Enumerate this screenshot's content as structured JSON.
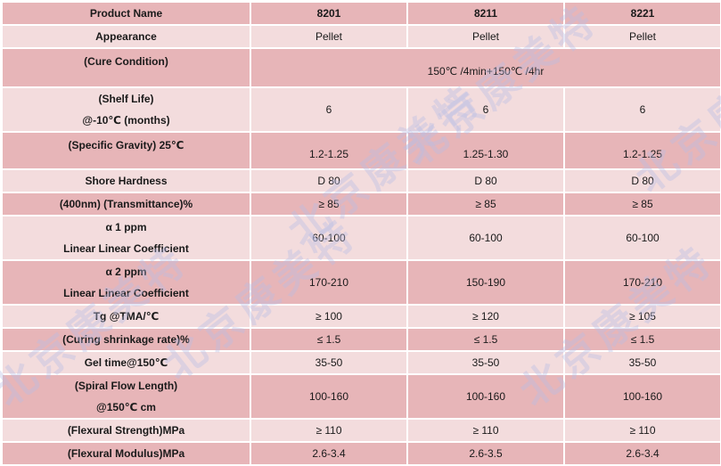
{
  "header": {
    "label": "Product Name",
    "columns": [
      "8201",
      "8211",
      "8221"
    ]
  },
  "rows": [
    {
      "label_lines": [
        "Appearance"
      ],
      "values": [
        "Pellet",
        "Pellet",
        "Pellet"
      ]
    },
    {
      "label_lines": [
        "(Cure Condition)"
      ],
      "merged_value": "150℃  /4min+150℃  /4hr"
    },
    {
      "label_lines": [
        "(Shelf Life)",
        "@-10℃  (months)"
      ],
      "values": [
        "6",
        "6",
        "6"
      ]
    },
    {
      "label_lines": [
        "(Specific Gravity) 25℃"
      ],
      "values": [
        "1.2-1.25",
        "1.25-1.30",
        "1.2-1.25"
      ]
    },
    {
      "label_lines": [
        "Shore Hardness"
      ],
      "values": [
        "D 80",
        "D 80",
        "D 80"
      ]
    },
    {
      "label_lines": [
        "(400nm) (Transmittance)%"
      ],
      "values": [
        "≥ 85",
        "≥ 85",
        "≥ 85"
      ]
    },
    {
      "label_lines": [
        "α 1    ppm",
        "Linear Linear Coefficient"
      ],
      "values": [
        "60-100",
        "60-100",
        "60-100"
      ]
    },
    {
      "label_lines": [
        "α 2    ppm",
        "Linear Linear Coefficient"
      ],
      "values": [
        "170-210",
        "150-190",
        "170-210"
      ]
    },
    {
      "label_lines": [
        "Tg @TMA/℃"
      ],
      "values": [
        "≥ 100",
        "≥ 120",
        "≥ 105"
      ]
    },
    {
      "label_lines": [
        "(Curing shrinkage rate)%"
      ],
      "values": [
        "≤ 1.5",
        "≤ 1.5",
        "≤ 1.5"
      ]
    },
    {
      "label_lines": [
        "Gel time@150℃"
      ],
      "values": [
        "35-50",
        "35-50",
        "35-50"
      ]
    },
    {
      "label_lines": [
        "(Spiral Flow Length)",
        "@150℃  cm"
      ],
      "values": [
        "100-160",
        "100-160",
        "100-160"
      ]
    },
    {
      "label_lines": [
        "(Flexural Strength)MPa"
      ],
      "values": [
        "≥ 110",
        "≥ 110",
        "≥ 110"
      ]
    },
    {
      "label_lines": [
        "(Flexural Modulus)MPa"
      ],
      "values": [
        "2.6-3.4",
        "2.6-3.5",
        "2.6-3.4"
      ]
    }
  ],
  "watermark": {
    "text": "北京康美特"
  },
  "colors": {
    "dark_row": "#e7b5b8",
    "light_row": "#f3dcdd",
    "border": "#ffffff",
    "watermark": "#b9bee6"
  }
}
